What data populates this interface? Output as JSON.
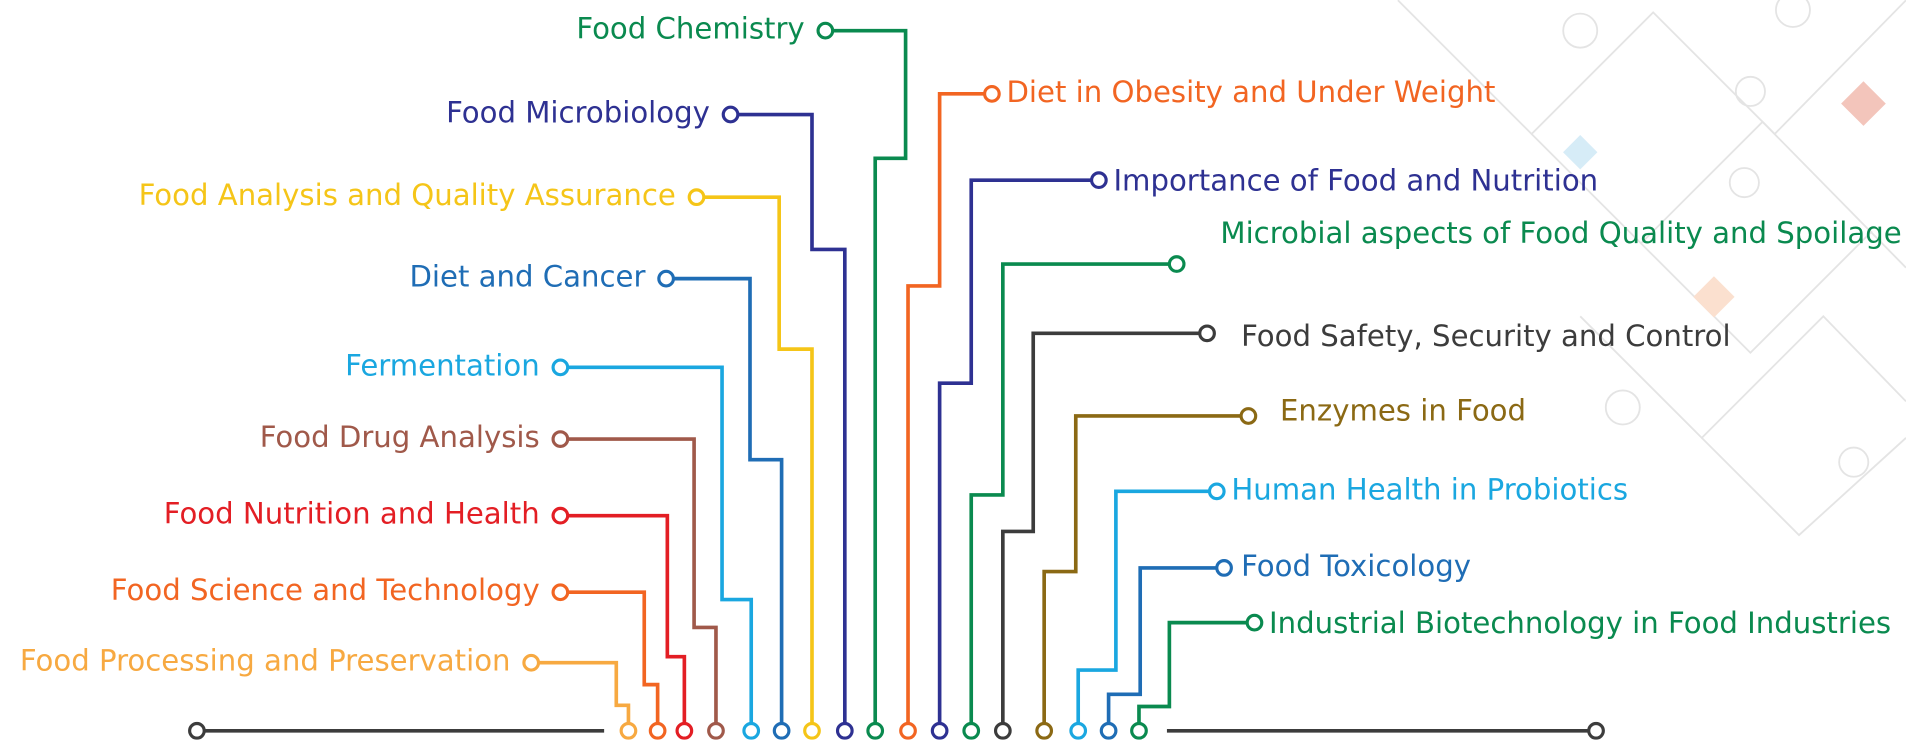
{
  "left_topics": [
    {
      "label": "Food Chemistry"
    },
    {
      "label": "Food Microbiology"
    },
    {
      "label": "Food Analysis and Quality Assurance"
    },
    {
      "label": "Diet and Cancer"
    },
    {
      "label": "Fermentation"
    },
    {
      "label": "Food Drug Analysis"
    },
    {
      "label": "Food Nutrition and Health"
    },
    {
      "label": "Food Science and Technology"
    },
    {
      "label": "Food Processing and Preservation"
    }
  ],
  "right_topics": [
    {
      "label": "Diet in Obesity and Under Weight"
    },
    {
      "label": "Importance of Food and Nutrition"
    },
    {
      "label": "Microbial aspects of Food Quality and Spoilage"
    },
    {
      "label": "Food Safety, Security and Control"
    },
    {
      "label": "Enzymes in Food"
    },
    {
      "label": "Human Health in Probiotics"
    },
    {
      "label": "Food Toxicology"
    },
    {
      "label": "Industrial Biotechnology in Food Industries"
    }
  ]
}
